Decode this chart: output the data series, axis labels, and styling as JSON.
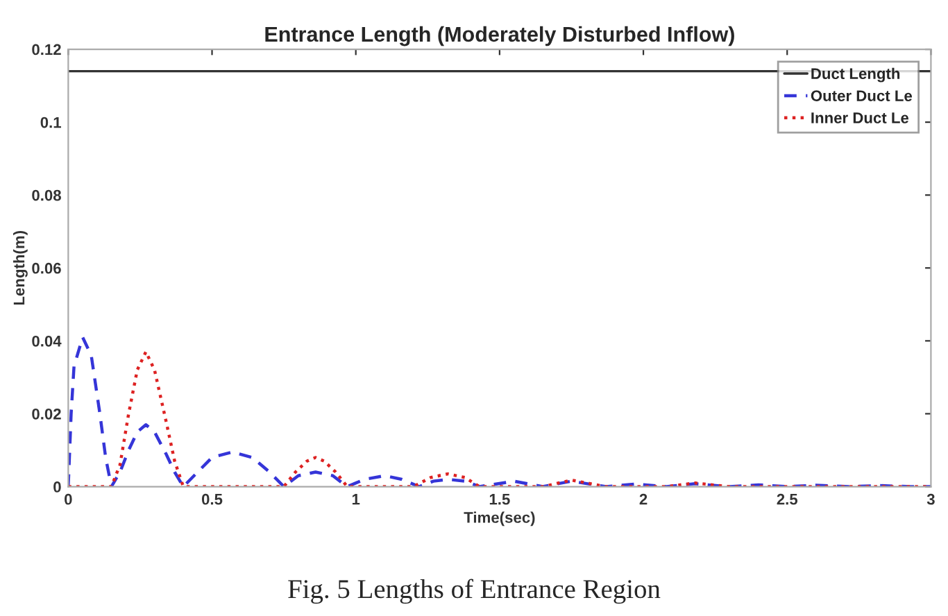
{
  "chart_data": {
    "type": "line",
    "title": "Entrance Length (Moderately Disturbed Inflow)",
    "xlabel": "Time(sec)",
    "ylabel": "Length(m)",
    "annotations": [
      "Fig. 5 Lengths of Entrance Region"
    ],
    "xlim": [
      0,
      3
    ],
    "xticks": [
      0,
      0.5,
      1,
      1.5,
      2,
      2.5,
      3
    ],
    "ylim": [
      0,
      0.12
    ],
    "yticks": [
      0,
      0.02,
      0.04,
      0.06,
      0.08,
      0.1,
      0.12
    ],
    "grid": false,
    "legend": "top right",
    "marker": "none",
    "series": [
      {
        "name": "Duct Length",
        "color": "#333333",
        "line_style": "solid",
        "x": [
          0,
          3
        ],
        "values": [
          0.114,
          0.114
        ]
      },
      {
        "name": "Outer Duct Le",
        "color": "#3535d8",
        "line_style": "dashed",
        "x": [
          0,
          0.01,
          0.02,
          0.05,
          0.08,
          0.11,
          0.13,
          0.15,
          0.18,
          0.21,
          0.24,
          0.27,
          0.3,
          0.34,
          0.37,
          0.4,
          0.45,
          0.5,
          0.57,
          0.64,
          0.7,
          0.75,
          0.8,
          0.86,
          0.92,
          0.97,
          1.03,
          1.1,
          1.16,
          1.22,
          1.27,
          1.32,
          1.38,
          1.43,
          1.55,
          1.65,
          1.75,
          1.87,
          1.97,
          2.08,
          2.18,
          2.3,
          2.4,
          2.5,
          2.6,
          2.72,
          2.82,
          2.93,
          3.0
        ],
        "values": [
          0,
          0.02,
          0.033,
          0.041,
          0.036,
          0.02,
          0.008,
          0,
          0.004,
          0.01,
          0.015,
          0.017,
          0.015,
          0.009,
          0.004,
          0,
          0.004,
          0.008,
          0.0095,
          0.008,
          0.004,
          0,
          0.003,
          0.004,
          0.003,
          0,
          0.002,
          0.003,
          0.002,
          0,
          0.0015,
          0.002,
          0.0015,
          0,
          0.0015,
          0,
          0.0015,
          0,
          0.0007,
          0,
          0.0008,
          0,
          0.0005,
          0,
          0.0004,
          0,
          0.0003,
          0,
          0
        ]
      },
      {
        "name": "Inner Duct Le",
        "color": "#dd2222",
        "line_style": "dotted",
        "x": [
          0,
          0.15,
          0.18,
          0.21,
          0.24,
          0.27,
          0.3,
          0.34,
          0.37,
          0.4,
          0.75,
          0.79,
          0.83,
          0.86,
          0.89,
          0.93,
          0.97,
          1.2,
          1.26,
          1.32,
          1.38,
          1.43,
          1.65,
          1.75,
          1.87,
          2.08,
          2.18,
          2.3,
          3.0
        ],
        "values": [
          0,
          0,
          0.006,
          0.02,
          0.032,
          0.037,
          0.032,
          0.018,
          0.007,
          0,
          0,
          0.004,
          0.007,
          0.008,
          0.007,
          0.004,
          0,
          0,
          0.0025,
          0.0035,
          0.0025,
          0,
          0,
          0.0018,
          0,
          0,
          0.001,
          0,
          0
        ]
      }
    ]
  }
}
